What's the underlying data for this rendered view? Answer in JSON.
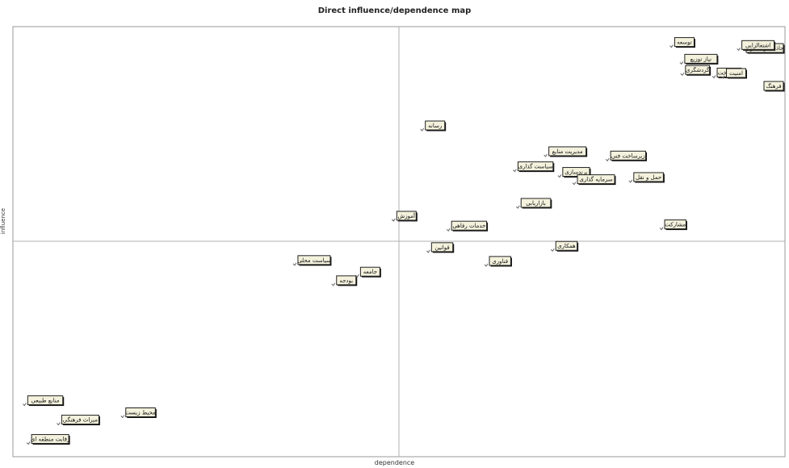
{
  "chart_data": {
    "type": "scatter",
    "title": "Direct influence/dependence map",
    "xlabel": "dependence",
    "ylabel": "influence",
    "xlim": [
      0,
      100
    ],
    "ylim": [
      0,
      100
    ],
    "grid": false,
    "points": [
      {
        "label": "توسعه",
        "x": 85.3,
        "y": 95.2
      },
      {
        "label": "نیاز توزیع",
        "x": 86.6,
        "y": 91.3
      },
      {
        "label": "جاذبه گردشگری",
        "x": 96.1,
        "y": 93.8
      },
      {
        "label": "اشتغالزایی",
        "x": 94.0,
        "y": 94.5
      },
      {
        "label": "گردشگری",
        "x": 86.7,
        "y": 88.7
      },
      {
        "label": "زیرساخت",
        "x": 90.8,
        "y": 88.1
      },
      {
        "label": "امنیت",
        "x": 92.0,
        "y": 88.0
      },
      {
        "label": "فرهنگ",
        "x": 98.0,
        "y": 85.0
      },
      {
        "label": "رسانه",
        "x": 53.0,
        "y": 75.8
      },
      {
        "label": "مدیریت منابع",
        "x": 69.0,
        "y": 69.8
      },
      {
        "label": "سیاست گذاری",
        "x": 65.0,
        "y": 66.3
      },
      {
        "label": "برندسازی",
        "x": 70.8,
        "y": 65.0
      },
      {
        "label": "زیرساخت فنی",
        "x": 77.0,
        "y": 68.8
      },
      {
        "label": "سرمایه گذاری",
        "x": 72.7,
        "y": 63.3
      },
      {
        "label": "حمل و نقل",
        "x": 80.0,
        "y": 63.8
      },
      {
        "label": "بازاریابی",
        "x": 65.4,
        "y": 57.8
      },
      {
        "label": "آموزش",
        "x": 49.3,
        "y": 54.8
      },
      {
        "label": "خدمات رفاهی",
        "x": 56.4,
        "y": 52.5
      },
      {
        "label": "مشارکت",
        "x": 84.0,
        "y": 52.8
      },
      {
        "label": "قوانین",
        "x": 53.8,
        "y": 47.5
      },
      {
        "label": "همکاری",
        "x": 69.9,
        "y": 47.8
      },
      {
        "label": "فناوری",
        "x": 61.3,
        "y": 44.3
      },
      {
        "label": "سیاست محلی",
        "x": 36.5,
        "y": 44.5
      },
      {
        "label": "جامعه",
        "x": 44.6,
        "y": 41.8
      },
      {
        "label": "بودجه",
        "x": 41.5,
        "y": 39.8
      },
      {
        "label": "منابع طبیعی",
        "x": 1.5,
        "y": 11.9
      },
      {
        "label": "محیط زیست",
        "x": 14.2,
        "y": 9.1
      },
      {
        "label": "میراث فرهنگی",
        "x": 5.9,
        "y": 7.4
      },
      {
        "label": "رقابت منطقه ای",
        "x": 2.0,
        "y": 2.9
      }
    ]
  }
}
